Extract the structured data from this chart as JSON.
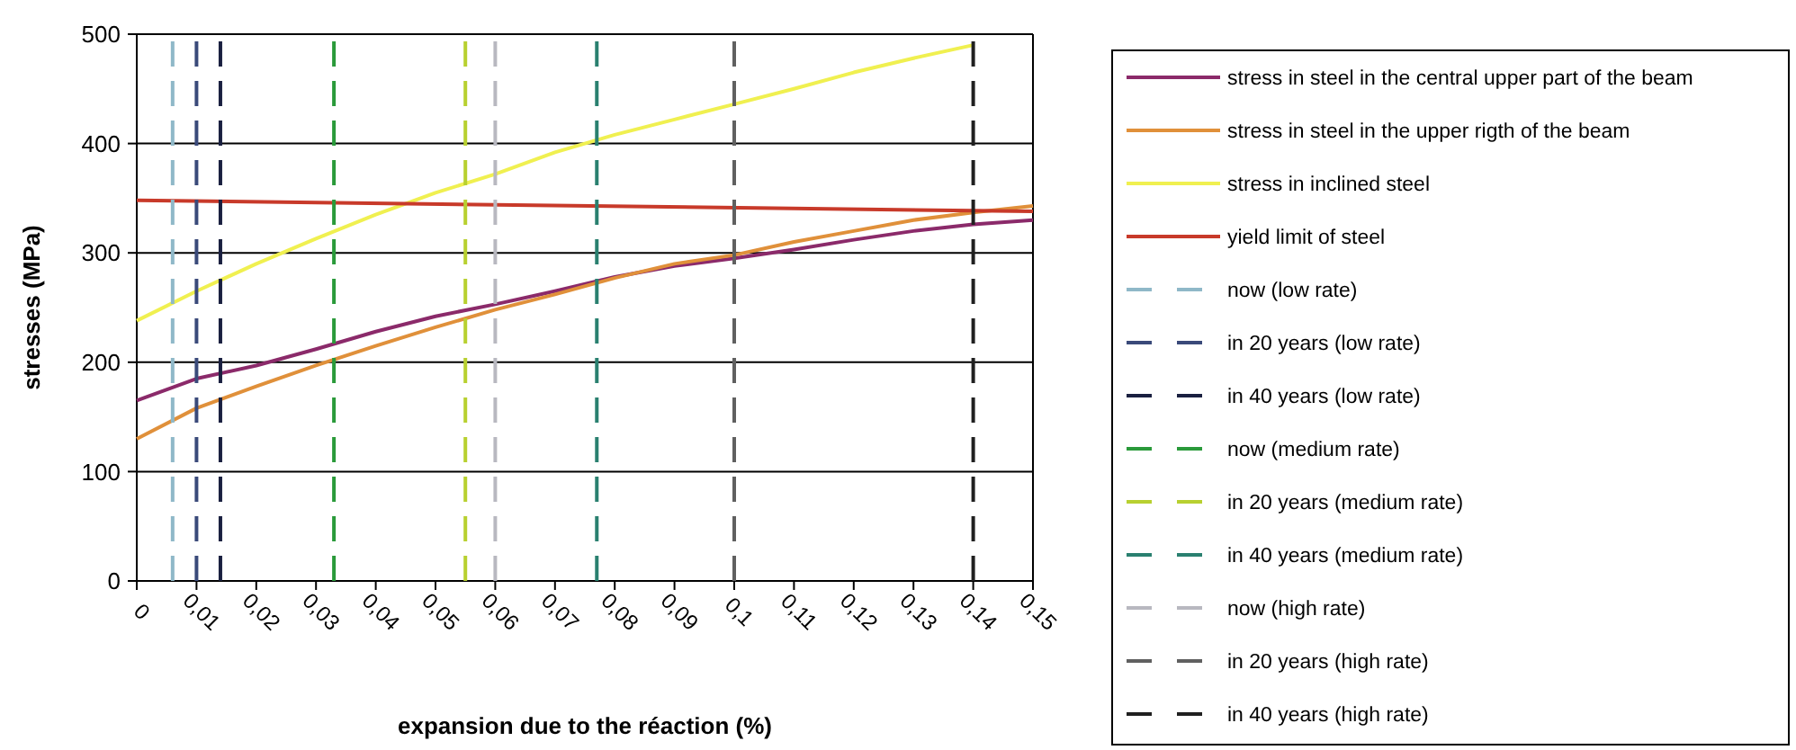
{
  "chart_data": {
    "type": "line",
    "xlabel": "expansion due to the réaction (%)",
    "ylabel": "stresses (MPa)",
    "xlim": [
      0,
      0.15
    ],
    "ylim": [
      0,
      500
    ],
    "xticks": [
      0,
      {
        "value": 0.01,
        "label": "0,01"
      },
      {
        "value": 0.02,
        "label": "0,02"
      },
      {
        "value": 0.03,
        "label": "0,03"
      },
      {
        "value": 0.04,
        "label": "0,04"
      },
      {
        "value": 0.05,
        "label": "0,05"
      },
      {
        "value": 0.06,
        "label": "0,06"
      },
      {
        "value": 0.07,
        "label": "0,07"
      },
      {
        "value": 0.08,
        "label": "0,08"
      },
      {
        "value": 0.09,
        "label": "0,09"
      },
      {
        "value": 0.1,
        "label": "0,1"
      },
      {
        "value": 0.11,
        "label": "0,11"
      },
      {
        "value": 0.12,
        "label": "0,12"
      },
      {
        "value": 0.13,
        "label": "0,13"
      },
      {
        "value": 0.14,
        "label": "0,14"
      },
      {
        "value": 0.15,
        "label": "0,15"
      }
    ],
    "yticks": [
      0,
      100,
      200,
      300,
      400,
      500
    ],
    "grid": "y",
    "legend": "right",
    "x": [
      0,
      0.01,
      0.02,
      0.03,
      0.04,
      0.05,
      0.06,
      0.07,
      0.08,
      0.09,
      0.1,
      0.11,
      0.12,
      0.13,
      0.14,
      0.15
    ],
    "series": [
      {
        "name": "stress in steel in the central upper part of the beam",
        "color": "#8b2a6a",
        "values": [
          165,
          185,
          197,
          212,
          228,
          242,
          253,
          265,
          278,
          288,
          295,
          303,
          312,
          320,
          326,
          330
        ]
      },
      {
        "name": "stress in steel in the upper rigth of the beam",
        "color": "#e0903a",
        "values": [
          130,
          158,
          178,
          197,
          215,
          232,
          248,
          262,
          277,
          290,
          298,
          310,
          320,
          330,
          337,
          343
        ]
      },
      {
        "name": "stress in inclined steel",
        "color": "#f0f050",
        "values": [
          238,
          265,
          290,
          313,
          335,
          355,
          372,
          392,
          408,
          422,
          436,
          450,
          465,
          478,
          490,
          null
        ]
      },
      {
        "name": "yield limit of steel",
        "color": "#c83a2a",
        "x": [
          0,
          0.15
        ],
        "values": [
          348,
          338
        ]
      },
      {
        "name": "now (low rate)",
        "color": "#8fb8c8",
        "line_style": "dashed",
        "x": [
          0.006,
          0.006
        ],
        "values": [
          0,
          500
        ]
      },
      {
        "name": "in 20 years (low rate)",
        "color": "#3a4a7a",
        "line_style": "dashed",
        "x": [
          0.01,
          0.01
        ],
        "values": [
          0,
          500
        ]
      },
      {
        "name": "in 40 years (low rate)",
        "color": "#1a2040",
        "line_style": "dashed",
        "x": [
          0.014,
          0.014
        ],
        "values": [
          0,
          500
        ]
      },
      {
        "name": "now (medium rate)",
        "color": "#2a9a3a",
        "line_style": "dashed",
        "x": [
          0.033,
          0.033
        ],
        "values": [
          0,
          500
        ]
      },
      {
        "name": "in 20 years (medium rate)",
        "color": "#b8d030",
        "line_style": "dashed",
        "x": [
          0.055,
          0.055
        ],
        "values": [
          0,
          500
        ]
      },
      {
        "name": "in 40 years (medium rate)",
        "color": "#2a8070",
        "line_style": "dashed",
        "x": [
          0.077,
          0.077
        ],
        "values": [
          0,
          500
        ]
      },
      {
        "name": "now (high rate)",
        "color": "#b8b8c0",
        "line_style": "dashed",
        "x": [
          0.06,
          0.06
        ],
        "values": [
          0,
          500
        ]
      },
      {
        "name": "in 20 years (high rate)",
        "color": "#606060",
        "line_style": "dashed",
        "x": [
          0.1,
          0.1
        ],
        "values": [
          0,
          500
        ]
      },
      {
        "name": "in 40 years (high rate)",
        "color": "#202020",
        "line_style": "dashed",
        "x": [
          0.14,
          0.14
        ],
        "values": [
          0,
          500
        ]
      }
    ]
  }
}
